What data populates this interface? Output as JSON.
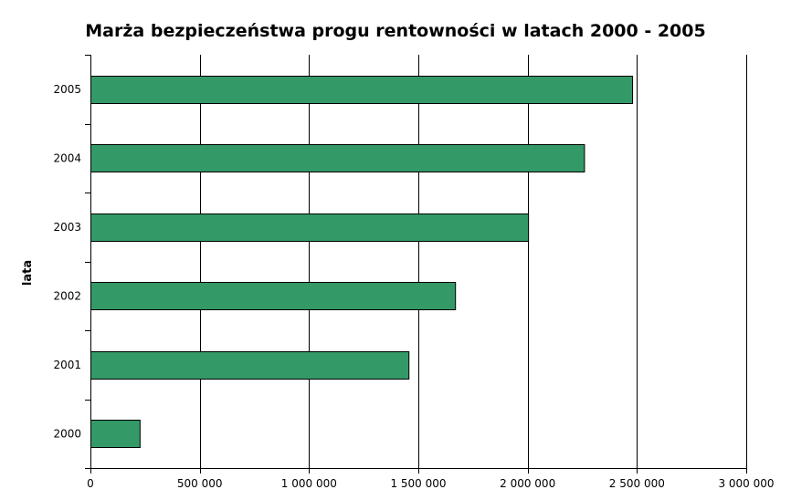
{
  "chart_data": {
    "type": "bar",
    "orientation": "horizontal",
    "title": "Marża bezpieczeństwa progu rentowności w latach 2000 - 2005",
    "xlabel": "",
    "ylabel": "lata",
    "categories": [
      "2000",
      "2001",
      "2002",
      "2003",
      "2004",
      "2005"
    ],
    "values": [
      225000,
      1455000,
      1668000,
      2002000,
      2258000,
      2478000
    ],
    "xlim": [
      0,
      3000000
    ],
    "xticks": [
      0,
      500000,
      1000000,
      1500000,
      2000000,
      2500000,
      3000000
    ],
    "xtick_labels": [
      "0",
      "500 000",
      "1 000 000",
      "1 500 000",
      "2 000 000",
      "2 500 000",
      "3 000 000"
    ],
    "grid": true,
    "legend": false,
    "bar_color": "#339966"
  }
}
